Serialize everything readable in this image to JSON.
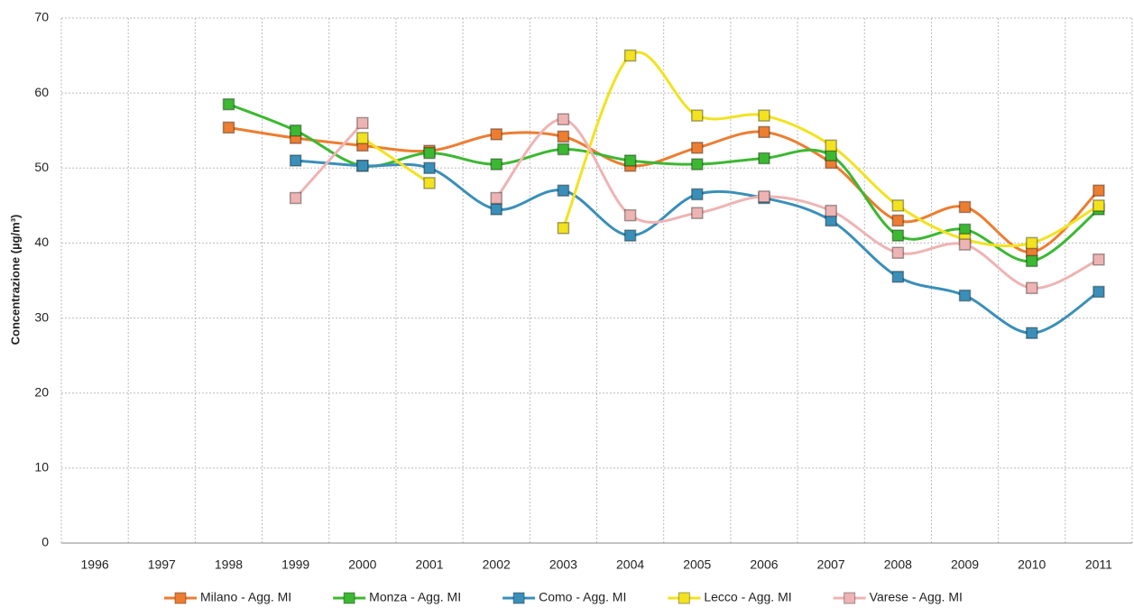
{
  "chart_data": {
    "type": "line",
    "y_label": "Concentrazione (µg/m³)",
    "categories": [
      "1996",
      "1997",
      "1998",
      "1999",
      "2000",
      "2001",
      "2002",
      "2003",
      "2004",
      "2005",
      "2006",
      "2007",
      "2008",
      "2009",
      "2010",
      "2011"
    ],
    "ylim": [
      0,
      70
    ],
    "yticks": [
      0,
      10,
      20,
      30,
      40,
      50,
      60,
      70
    ],
    "grid": true,
    "smooth": true,
    "legend": "bottom",
    "series": [
      {
        "name": "Milano - Agg. MI",
        "color": "#ed7d31",
        "values": [
          null,
          null,
          55.4,
          54,
          53,
          52.3,
          54.5,
          54.2,
          50.3,
          52.7,
          54.8,
          50.7,
          43,
          44.8,
          38.8,
          47
        ]
      },
      {
        "name": "Monza - Agg. MI",
        "color": "#3cb832",
        "values": [
          null,
          null,
          58.5,
          55,
          50.3,
          52,
          50.5,
          52.5,
          51,
          50.5,
          51.3,
          51.7,
          41,
          41.8,
          37.6,
          44.5
        ]
      },
      {
        "name": "Como - Agg. MI",
        "color": "#3a8fb8",
        "values": [
          null,
          null,
          null,
          51,
          50.3,
          50,
          44.5,
          47,
          41,
          46.5,
          46,
          43,
          35.5,
          33,
          28,
          33.5
        ]
      },
      {
        "name": "Lecco - Agg. MI",
        "color": "#f2e220",
        "values": [
          null,
          null,
          null,
          null,
          54,
          48,
          null,
          42,
          65,
          57,
          57,
          53,
          45,
          40.5,
          40,
          45
        ]
      },
      {
        "name": "Varese - Agg. MI",
        "color": "#eeb4b4",
        "values": [
          null,
          null,
          null,
          46,
          56,
          null,
          46,
          56.5,
          43.7,
          44,
          46.2,
          44.3,
          38.7,
          39.8,
          34,
          37.8
        ]
      }
    ]
  }
}
